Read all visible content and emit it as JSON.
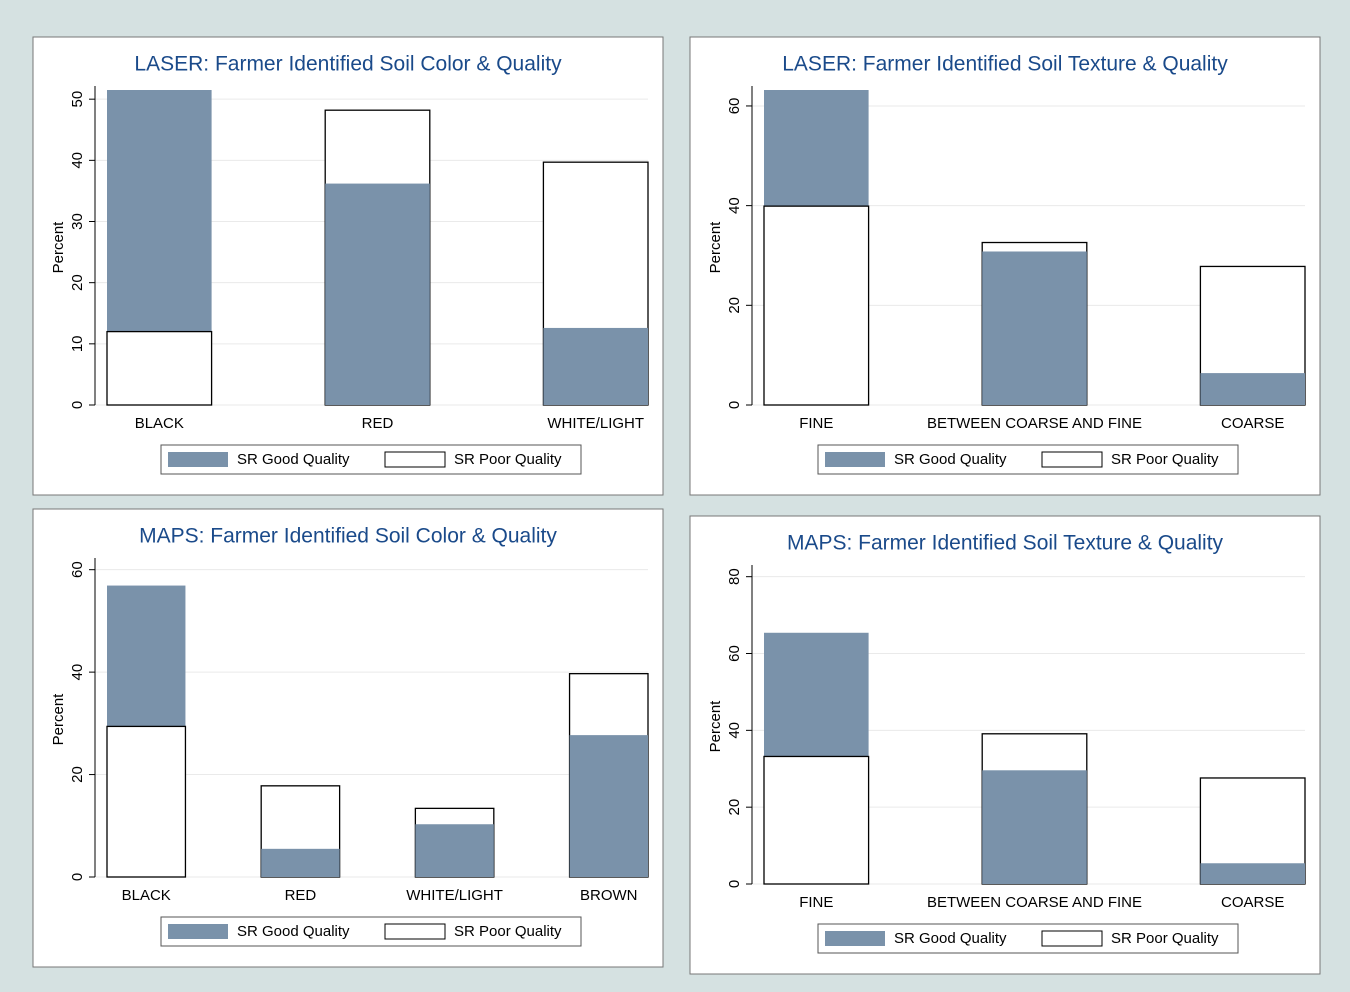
{
  "chart_data": [
    {
      "type": "bar",
      "title": "LASER: Farmer Identified Soil Color & Quality",
      "ylabel": "Percent",
      "categories": [
        "BLACK",
        "RED",
        "WHITE/LIGHT"
      ],
      "series": [
        {
          "name": "SR Good Quality",
          "color": "#7a92aa",
          "values": [
            51.5,
            36.2,
            12.6
          ]
        },
        {
          "name": "SR Poor Quality",
          "color": "#ffffff",
          "values": [
            12,
            48.2,
            39.7
          ]
        }
      ],
      "ylim": [
        0,
        51.5
      ],
      "yticks": [
        0,
        10,
        20,
        30,
        40,
        50
      ],
      "grid": true
    },
    {
      "type": "bar",
      "title": "LASER: Farmer Identified Soil Texture & Quality",
      "ylabel": "Percent",
      "categories": [
        "FINE",
        "BETWEEN COARSE AND FINE",
        "COARSE"
      ],
      "series": [
        {
          "name": "SR Good Quality",
          "color": "#7a92aa",
          "values": [
            63.2,
            30.8,
            6.4
          ]
        },
        {
          "name": "SR Poor Quality",
          "color": "#ffffff",
          "values": [
            39.9,
            32.6,
            27.8
          ]
        }
      ],
      "ylim": [
        0,
        63.2
      ],
      "yticks": [
        0,
        20,
        40,
        60
      ],
      "grid": true
    },
    {
      "type": "bar",
      "title": "MAPS: Farmer Identified Soil Color & Quality",
      "ylabel": "Percent",
      "categories": [
        "BLACK",
        "RED",
        "WHITE/LIGHT",
        "BROWN"
      ],
      "series": [
        {
          "name": "SR Good Quality",
          "color": "#7a92aa",
          "values": [
            56.9,
            5.5,
            10.3,
            27.7
          ]
        },
        {
          "name": "SR Poor Quality",
          "color": "#ffffff",
          "values": [
            29.4,
            17.8,
            13.4,
            39.7
          ]
        }
      ],
      "ylim": [
        0,
        61.5
      ],
      "yticks": [
        0,
        20,
        40,
        60
      ],
      "grid": true
    },
    {
      "type": "bar",
      "title": "MAPS: Farmer Identified Soil Texture & Quality",
      "ylabel": "Percent",
      "categories": [
        "FINE",
        "BETWEEN COARSE AND FINE",
        "COARSE"
      ],
      "series": [
        {
          "name": "SR Good Quality",
          "color": "#7a92aa",
          "values": [
            65.4,
            29.6,
            5.4
          ]
        },
        {
          "name": "SR Poor Quality",
          "color": "#ffffff",
          "values": [
            33.2,
            39.1,
            27.6
          ]
        }
      ],
      "ylim": [
        0,
        82
      ],
      "yticks": [
        0,
        20,
        40,
        60,
        80
      ],
      "grid": true
    }
  ]
}
